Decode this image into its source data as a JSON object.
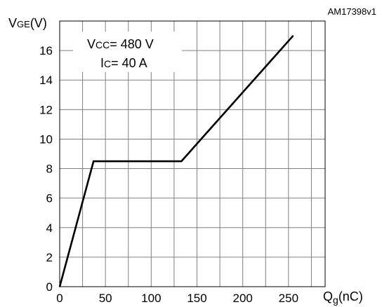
{
  "figure_id": "AM17398v1",
  "chart_data": {
    "type": "line",
    "title": "",
    "xlabel": {
      "main": "Q",
      "sub": "g",
      "unit": "(nC)"
    },
    "ylabel": {
      "main": "V",
      "sub": "GE",
      "unit": "(V)"
    },
    "xlim": [
      0,
      290
    ],
    "ylim": [
      0,
      18
    ],
    "x_ticks": [
      0,
      50,
      100,
      150,
      200,
      250
    ],
    "y_ticks": [
      0,
      2,
      4,
      6,
      8,
      10,
      12,
      14,
      16
    ],
    "grid": true,
    "series": [
      {
        "x": [
          0,
          37,
          133,
          255
        ],
        "y": [
          0,
          8.5,
          8.5,
          17
        ]
      }
    ],
    "annotations": [
      {
        "main": "V",
        "sub": "CC",
        "rest": "= 480 V"
      },
      {
        "main": "I",
        "sub": "C",
        "rest": "= 40 A"
      }
    ]
  }
}
